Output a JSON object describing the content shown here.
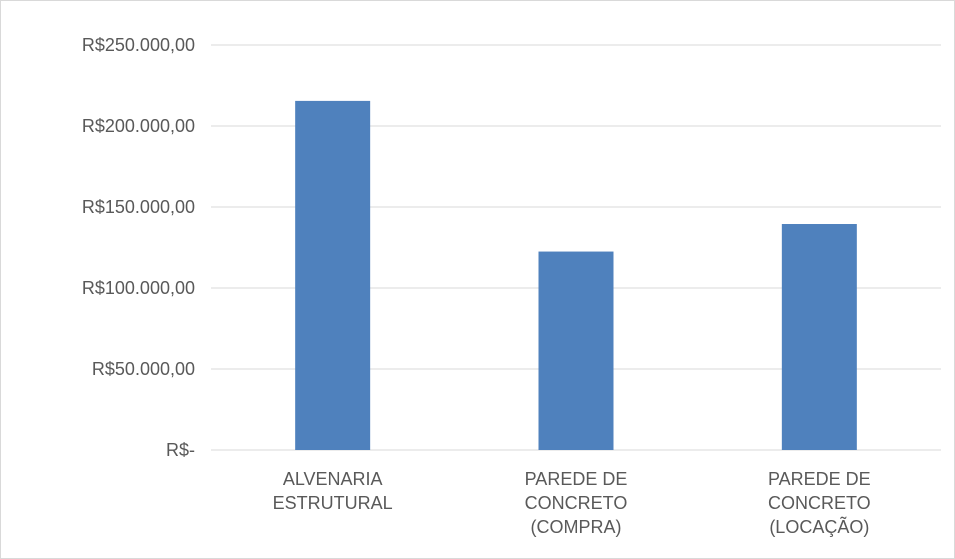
{
  "chart_data": {
    "type": "bar",
    "title": "",
    "xlabel": "",
    "ylabel": "",
    "categories": [
      [
        "ALVENARIA",
        "ESTRUTURAL"
      ],
      [
        "PAREDE DE",
        "CONCRETO",
        "(COMPRA)"
      ],
      [
        "PAREDE DE",
        "CONCRETO",
        "(LOCAÇÃO)"
      ]
    ],
    "values": [
      215500,
      122500,
      139500
    ],
    "ylim": [
      0,
      250000
    ],
    "yticks": [
      0,
      50000,
      100000,
      150000,
      200000,
      250000
    ],
    "ytick_labels": [
      "R$-",
      "R$50.000,00",
      "R$100.000,00",
      "R$150.000,00",
      "R$200.000,00",
      "R$250.000,00"
    ],
    "grid": true,
    "legend": "none",
    "colors": {
      "bar": "#4f81bd",
      "grid": "#d9d9d9",
      "text": "#595959"
    }
  }
}
